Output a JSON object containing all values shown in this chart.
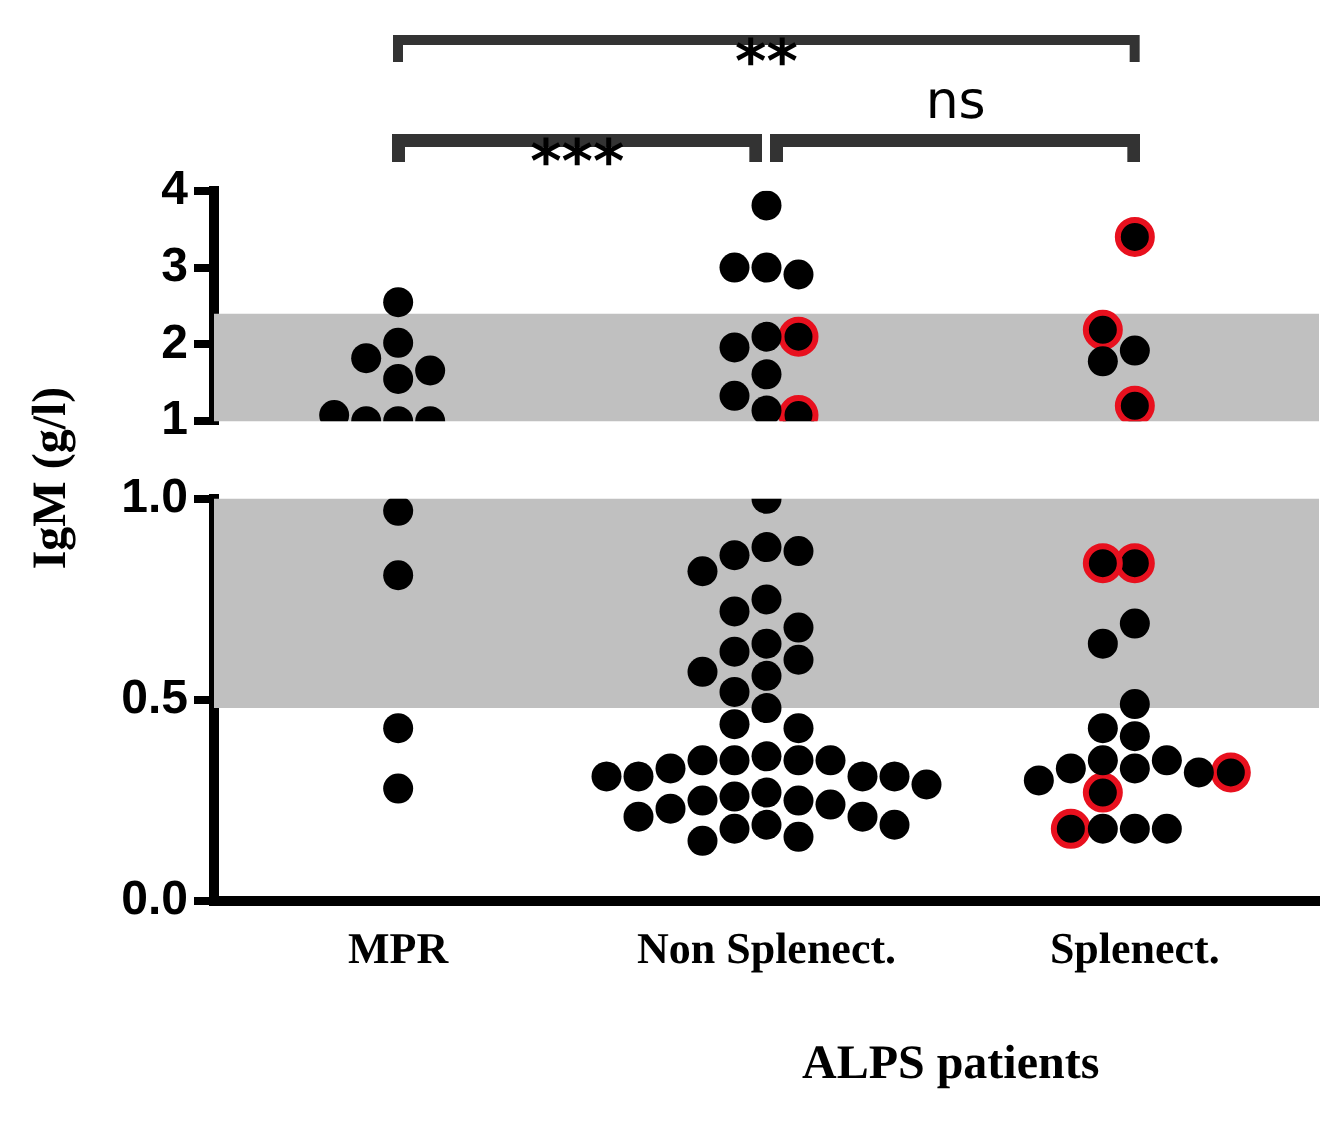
{
  "chart_data": [
    {
      "type": "scatter",
      "categories": [
        "MPR",
        "Non Splenect.",
        "Splenect."
      ],
      "ylim": [
        1,
        4
      ],
      "yticks": [
        1,
        2,
        3,
        4
      ],
      "tick_labels": "y",
      "marker": "circle",
      "grid": false,
      "legend": false,
      "annotations": [
        "**",
        "***",
        "ns"
      ],
      "bands": [
        {
          "axis": "y",
          "from": 1,
          "to": 2.4,
          "color": "#c0c0c0"
        }
      ],
      "series": [
        {
          "color": "#000000",
          "x": [
            "MPR",
            "MPR",
            "MPR",
            "MPR",
            "MPR",
            "MPR",
            "MPR",
            "MPR",
            "MPR",
            "Non Splenect.",
            "Non Splenect.",
            "Non Splenect.",
            "Non Splenect.",
            "Non Splenect.",
            "Non Splenect.",
            "Non Splenect.",
            "Non Splenect.",
            "Non Splenect.",
            "Splenect.",
            "Splenect."
          ],
          "values": [
            2.55,
            2.02,
            1.82,
            1.66,
            1.55,
            1.0,
            1.0,
            1.0,
            1.08,
            3.81,
            3.0,
            3.0,
            2.91,
            2.1,
            1.96,
            1.61,
            1.33,
            1.14,
            1.92,
            1.78
          ]
        },
        {
          "color": "#e8101e",
          "x": [
            "Non Splenect.",
            "Non Splenect.",
            "Splenect.",
            "Splenect.",
            "Splenect."
          ],
          "values": [
            2.1,
            1.08,
            3.4,
            2.19,
            1.2
          ]
        }
      ]
    },
    {
      "type": "scatter",
      "categories": [
        "MPR",
        "Non Splenect.",
        "Splenect."
      ],
      "ylim": [
        0,
        1
      ],
      "yticks": [
        {
          "value": 0,
          "label": "0.0"
        },
        {
          "value": 0.5,
          "label": "0.5"
        },
        {
          "value": 1,
          "label": "1.0"
        }
      ],
      "marker": "circle",
      "grid": false,
      "legend": false,
      "ylabel": "IgM (g/l)",
      "xlabel": "ALPS patients",
      "bands": [
        {
          "axis": "y",
          "from": 0.48,
          "to": 1,
          "color": "#c0c0c0"
        }
      ],
      "series": [
        {
          "color": "#000000",
          "x": [
            "MPR",
            "MPR",
            "MPR",
            "MPR",
            "Non Splenect.",
            "Non Splenect.",
            "Non Splenect.",
            "Non Splenect.",
            "Non Splenect.",
            "Non Splenect.",
            "Non Splenect.",
            "Non Splenect.",
            "Non Splenect.",
            "Non Splenect.",
            "Non Splenect.",
            "Non Splenect.",
            "Non Splenect.",
            "Non Splenect.",
            "Non Splenect.",
            "Non Splenect.",
            "Non Splenect.",
            "Non Splenect.",
            "Non Splenect.",
            "Non Splenect.",
            "Non Splenect.",
            "Non Splenect.",
            "Non Splenect.",
            "Non Splenect.",
            "Non Splenect.",
            "Non Splenect.",
            "Non Splenect.",
            "Non Splenect.",
            "Non Splenect.",
            "Non Splenect.",
            "Non Splenect.",
            "Non Splenect.",
            "Non Splenect.",
            "Non Splenect.",
            "Non Splenect.",
            "Non Splenect.",
            "Non Splenect.",
            "Non Splenect.",
            "Non Splenect.",
            "Non Splenect.",
            "Non Splenect.",
            "Splenect.",
            "Splenect.",
            "Splenect.",
            "Splenect.",
            "Splenect.",
            "Splenect.",
            "Splenect.",
            "Splenect.",
            "Splenect.",
            "Splenect.",
            "Splenect.",
            "Splenect.",
            "Splenect.",
            "Splenect."
          ],
          "values": [
            0.97,
            0.81,
            0.43,
            0.28,
            1.0,
            0.88,
            0.86,
            0.87,
            0.82,
            0.75,
            0.72,
            0.68,
            0.64,
            0.62,
            0.6,
            0.57,
            0.56,
            0.52,
            0.48,
            0.44,
            0.43,
            0.36,
            0.35,
            0.35,
            0.35,
            0.35,
            0.33,
            0.31,
            0.31,
            0.31,
            0.31,
            0.29,
            0.27,
            0.26,
            0.25,
            0.25,
            0.24,
            0.23,
            0.21,
            0.21,
            0.19,
            0.19,
            0.18,
            0.16,
            0.15,
            0.69,
            0.64,
            0.49,
            0.43,
            0.41,
            0.35,
            0.35,
            0.33,
            0.33,
            0.32,
            0.3,
            0.18,
            0.18,
            0.18
          ]
        },
        {
          "color": "#e8101e",
          "x": [
            "Splenect.",
            "Splenect.",
            "Splenect.",
            "Splenect.",
            "Splenect."
          ],
          "values": [
            0.84,
            0.84,
            0.32,
            0.27,
            0.18
          ]
        }
      ]
    }
  ]
}
